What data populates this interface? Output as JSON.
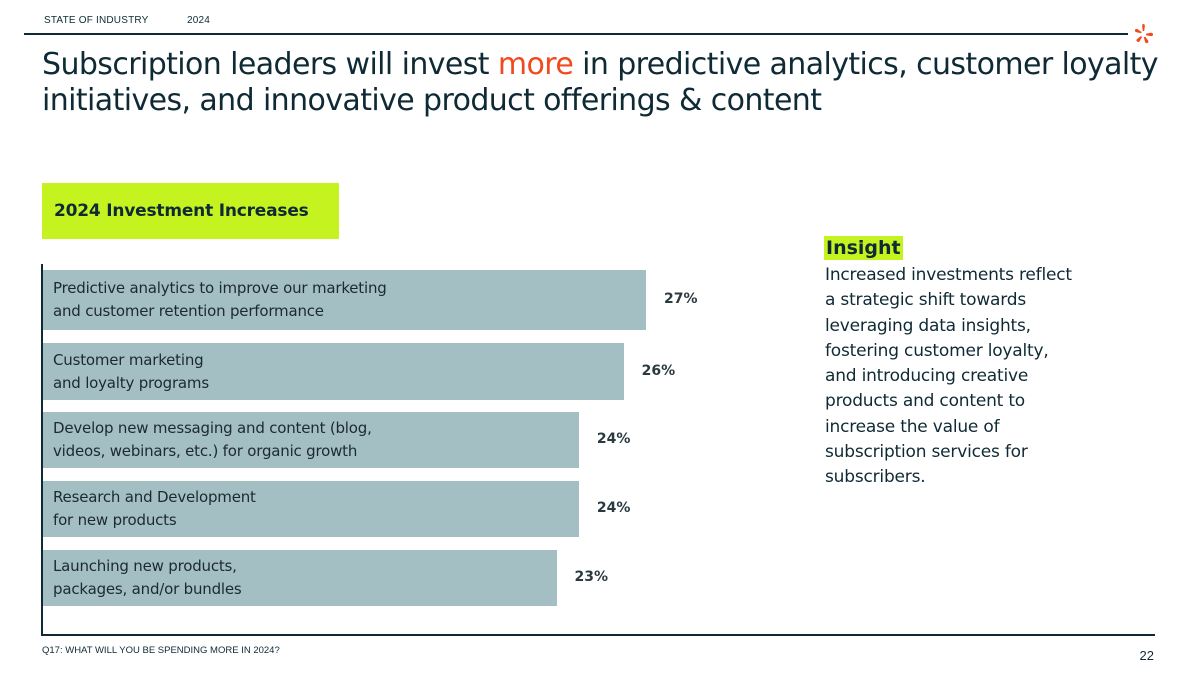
{
  "header": {
    "section_label": "STATE OF INDUSTRY",
    "year_label": "2024",
    "logo_icon": "orange-asterisk-icon"
  },
  "headline": {
    "part1": "Subscription leaders will invest ",
    "accent": "more",
    "part2": " in predictive analytics, customer loyalty initiatives, and innovative product offerings & content"
  },
  "colors": {
    "accent": "#f04a1e",
    "highlight": "#c5f31f",
    "bar": "#a3bfc4",
    "text": "#0f2a35"
  },
  "chart_data": {
    "type": "bar",
    "orientation": "horizontal",
    "title": "2024 Investment Increases",
    "categories": [
      "Predictive analytics to improve our marketing\nand customer retention performance",
      "Customer marketing\nand loyalty programs",
      "Develop new messaging and content (blog,\nvideos, webinars, etc.) for organic growth",
      "Research and Development\nfor new products",
      "Launching new products,\npackages, and/or bundles"
    ],
    "values": [
      27,
      26,
      24,
      24,
      23
    ],
    "value_labels": [
      "27%",
      "26%",
      "24%",
      "24%",
      "23%"
    ],
    "unit": "%",
    "grid": false
  },
  "insight": {
    "heading": "Insight",
    "body": "Increased investments reflect a strategic shift towards leveraging data insights, fostering customer loyalty, and introducing creative products and content to increase the value of subscription services for subscribers."
  },
  "footer": {
    "question": "Q17: WHAT WILL YOU BE SPENDING MORE IN 2024?",
    "page_number": "22"
  }
}
